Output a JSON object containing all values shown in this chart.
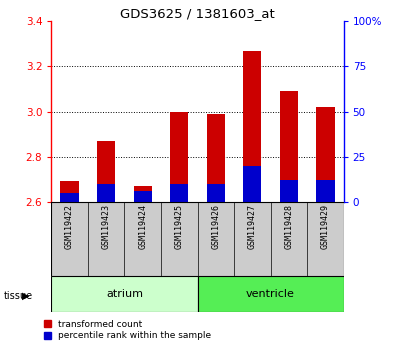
{
  "title": "GDS3625 / 1381603_at",
  "samples": [
    "GSM119422",
    "GSM119423",
    "GSM119424",
    "GSM119425",
    "GSM119426",
    "GSM119427",
    "GSM119428",
    "GSM119429"
  ],
  "transformed_counts": [
    2.69,
    2.87,
    2.67,
    3.0,
    2.99,
    3.27,
    3.09,
    3.02
  ],
  "percentile_ranks": [
    5,
    10,
    6,
    10,
    10,
    20,
    12,
    12
  ],
  "base_value": 2.6,
  "ylim_left": [
    2.6,
    3.4
  ],
  "ylim_right": [
    0,
    100
  ],
  "yticks_left": [
    2.6,
    2.8,
    3.0,
    3.2,
    3.4
  ],
  "yticks_right": [
    0,
    25,
    50,
    75,
    100
  ],
  "ytick_labels_right": [
    "0",
    "25",
    "50",
    "75",
    "100%"
  ],
  "bar_color_red": "#cc0000",
  "bar_color_blue": "#0000cc",
  "atrium_color": "#ccffcc",
  "ventricle_color": "#55ee55",
  "xlabel_bg": "#cccccc",
  "tissue_groups": {
    "atrium": [
      0,
      1,
      2,
      3
    ],
    "ventricle": [
      4,
      5,
      6,
      7
    ]
  },
  "legend_red": "transformed count",
  "legend_blue": "percentile rank within the sample",
  "bar_width": 0.5
}
